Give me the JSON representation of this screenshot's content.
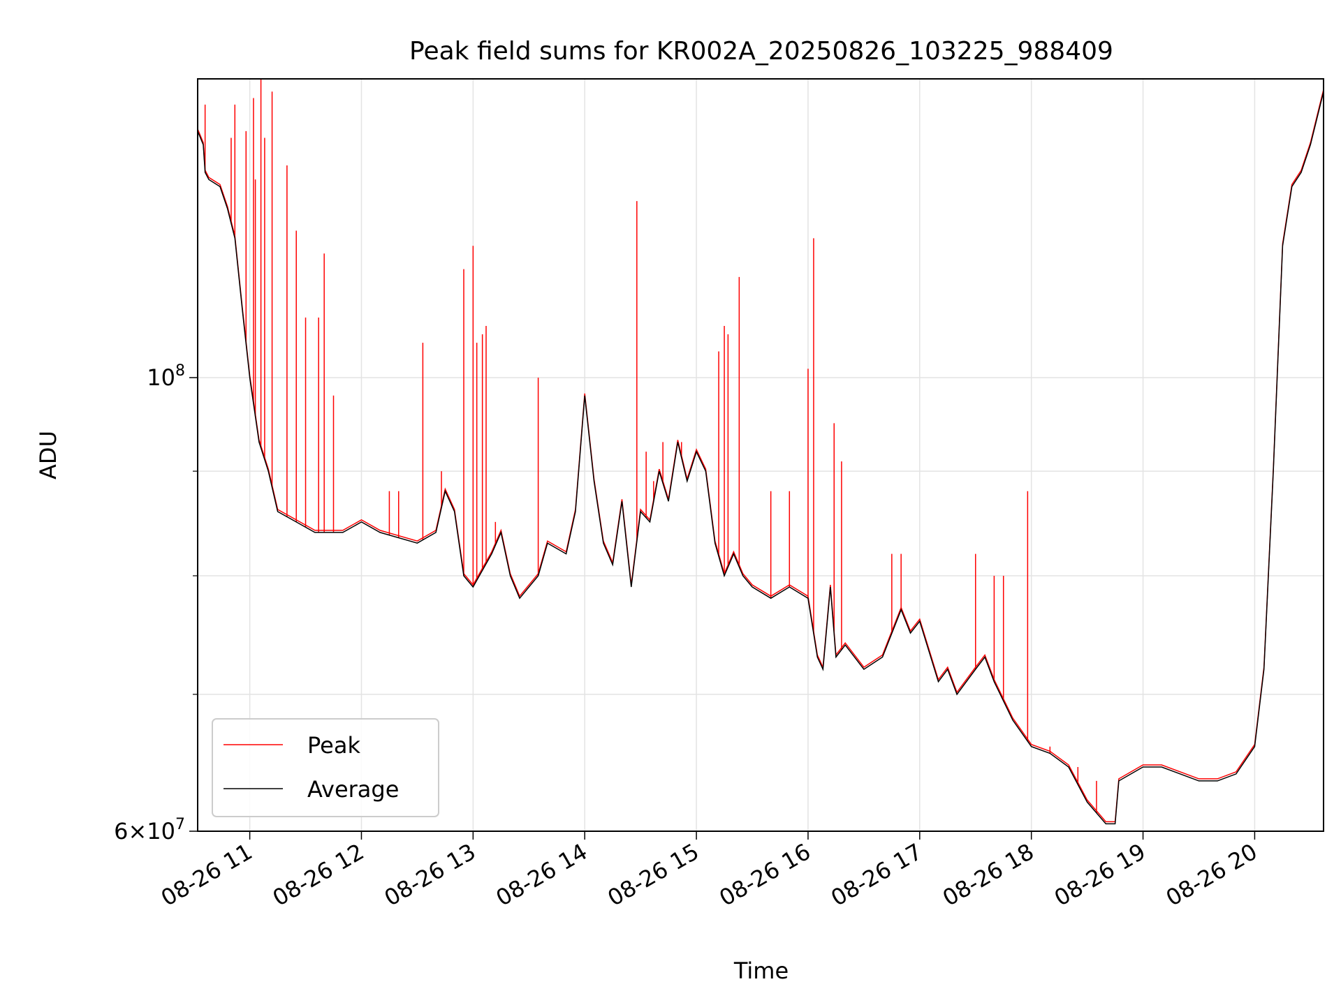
{
  "chart_data": {
    "type": "line",
    "title": "Peak field sums for KR002A_20250826_103225_988409",
    "xlabel": "Time",
    "ylabel": "ADU",
    "yscale": "log",
    "grid": true,
    "legend_position": "lower-left",
    "xlim": [
      "2025-08-26 10:32",
      "2025-08-26 20:37"
    ],
    "ylim": [
      60000000,
      140000000
    ],
    "xticks": [
      {
        "x": "2025-08-26 11:00",
        "label": "08-26 11"
      },
      {
        "x": "2025-08-26 12:00",
        "label": "08-26 12"
      },
      {
        "x": "2025-08-26 13:00",
        "label": "08-26 13"
      },
      {
        "x": "2025-08-26 14:00",
        "label": "08-26 14"
      },
      {
        "x": "2025-08-26 15:00",
        "label": "08-26 15"
      },
      {
        "x": "2025-08-26 16:00",
        "label": "08-26 16"
      },
      {
        "x": "2025-08-26 17:00",
        "label": "08-26 17"
      },
      {
        "x": "2025-08-26 18:00",
        "label": "08-26 18"
      },
      {
        "x": "2025-08-26 19:00",
        "label": "08-26 19"
      },
      {
        "x": "2025-08-26 20:00",
        "label": "08-26 20"
      }
    ],
    "yticks_major": [
      {
        "y": 100000000,
        "base": "10",
        "exp": "8",
        "mant": ""
      },
      {
        "y": 60000000,
        "base": "10",
        "exp": "7",
        "mant": "6"
      }
    ],
    "yticks_minor": [
      70000000,
      80000000,
      90000000
    ],
    "series": [
      {
        "name": "Average",
        "color": "#000000",
        "x": [
          "2025-08-26 10:32",
          "2025-08-26 10:35",
          "2025-08-26 10:36",
          "2025-08-26 10:38",
          "2025-08-26 10:44",
          "2025-08-26 10:48",
          "2025-08-26 10:52",
          "2025-08-26 10:56",
          "2025-08-26 11:00",
          "2025-08-26 11:05",
          "2025-08-26 11:10",
          "2025-08-26 11:15",
          "2025-08-26 11:25",
          "2025-08-26 11:35",
          "2025-08-26 11:50",
          "2025-08-26 12:00",
          "2025-08-26 12:10",
          "2025-08-26 12:30",
          "2025-08-26 12:40",
          "2025-08-26 12:45",
          "2025-08-26 12:50",
          "2025-08-26 12:55",
          "2025-08-26 13:00",
          "2025-08-26 13:10",
          "2025-08-26 13:15",
          "2025-08-26 13:20",
          "2025-08-26 13:25",
          "2025-08-26 13:35",
          "2025-08-26 13:40",
          "2025-08-26 13:50",
          "2025-08-26 13:55",
          "2025-08-26 14:00",
          "2025-08-26 14:05",
          "2025-08-26 14:10",
          "2025-08-26 14:15",
          "2025-08-26 14:20",
          "2025-08-26 14:25",
          "2025-08-26 14:30",
          "2025-08-26 14:35",
          "2025-08-26 14:40",
          "2025-08-26 14:45",
          "2025-08-26 14:50",
          "2025-08-26 14:55",
          "2025-08-26 15:00",
          "2025-08-26 15:05",
          "2025-08-26 15:10",
          "2025-08-26 15:15",
          "2025-08-26 15:20",
          "2025-08-26 15:25",
          "2025-08-26 15:30",
          "2025-08-26 15:40",
          "2025-08-26 15:50",
          "2025-08-26 16:00",
          "2025-08-26 16:05",
          "2025-08-26 16:08",
          "2025-08-26 16:12",
          "2025-08-26 16:15",
          "2025-08-26 16:20",
          "2025-08-26 16:30",
          "2025-08-26 16:40",
          "2025-08-26 16:50",
          "2025-08-26 16:55",
          "2025-08-26 17:00",
          "2025-08-26 17:10",
          "2025-08-26 17:15",
          "2025-08-26 17:20",
          "2025-08-26 17:30",
          "2025-08-26 17:35",
          "2025-08-26 17:40",
          "2025-08-26 17:50",
          "2025-08-26 18:00",
          "2025-08-26 18:10",
          "2025-08-26 18:20",
          "2025-08-26 18:30",
          "2025-08-26 18:40",
          "2025-08-26 18:45",
          "2025-08-26 18:47",
          "2025-08-26 19:00",
          "2025-08-26 19:10",
          "2025-08-26 19:20",
          "2025-08-26 19:30",
          "2025-08-26 19:40",
          "2025-08-26 19:50",
          "2025-08-26 20:00",
          "2025-08-26 20:05",
          "2025-08-26 20:10",
          "2025-08-26 20:15",
          "2025-08-26 20:20",
          "2025-08-26 20:25",
          "2025-08-26 20:30",
          "2025-08-26 20:37"
        ],
        "y": [
          132000000,
          130000000,
          126000000,
          125000000,
          124000000,
          121000000,
          117000000,
          108000000,
          100000000,
          93000000,
          90000000,
          86000000,
          85000000,
          84000000,
          84000000,
          85000000,
          84000000,
          83000000,
          84000000,
          88000000,
          86000000,
          80000000,
          79000000,
          82000000,
          84000000,
          80000000,
          78000000,
          80000000,
          83000000,
          82000000,
          86000000,
          98000000,
          89000000,
          83000000,
          81000000,
          87000000,
          79000000,
          86000000,
          85000000,
          90000000,
          87000000,
          93000000,
          89000000,
          92000000,
          90000000,
          83000000,
          80000000,
          82000000,
          80000000,
          79000000,
          78000000,
          79000000,
          78000000,
          73000000,
          72000000,
          79000000,
          73000000,
          74000000,
          72000000,
          73000000,
          77000000,
          75000000,
          76000000,
          71000000,
          72000000,
          70000000,
          72000000,
          73000000,
          71000000,
          68000000,
          66000000,
          65500000,
          64500000,
          62000000,
          60500000,
          60500000,
          63500000,
          64500000,
          64500000,
          64000000,
          63500000,
          63500000,
          64000000,
          66000000,
          72000000,
          90000000,
          116000000,
          124000000,
          126000000,
          130000000,
          138000000
        ]
      },
      {
        "name": "Peak",
        "color": "#ff0000",
        "x": [
          "2025-08-26 10:36",
          "2025-08-26 10:50",
          "2025-08-26 10:52",
          "2025-08-26 10:58",
          "2025-08-26 11:02",
          "2025-08-26 11:03",
          "2025-08-26 11:06",
          "2025-08-26 11:08",
          "2025-08-26 11:12",
          "2025-08-26 11:20",
          "2025-08-26 11:25",
          "2025-08-26 11:30",
          "2025-08-26 11:37",
          "2025-08-26 11:40",
          "2025-08-26 11:45",
          "2025-08-26 12:15",
          "2025-08-26 12:20",
          "2025-08-26 12:33",
          "2025-08-26 12:43",
          "2025-08-26 12:55",
          "2025-08-26 13:00",
          "2025-08-26 13:02",
          "2025-08-26 13:05",
          "2025-08-26 13:07",
          "2025-08-26 13:12",
          "2025-08-26 13:35",
          "2025-08-26 14:28",
          "2025-08-26 14:33",
          "2025-08-26 14:37",
          "2025-08-26 14:42",
          "2025-08-26 14:52",
          "2025-08-26 15:12",
          "2025-08-26 15:15",
          "2025-08-26 15:17",
          "2025-08-26 15:23",
          "2025-08-26 15:40",
          "2025-08-26 15:50",
          "2025-08-26 16:00",
          "2025-08-26 16:03",
          "2025-08-26 16:14",
          "2025-08-26 16:18",
          "2025-08-26 16:45",
          "2025-08-26 16:50",
          "2025-08-26 17:30",
          "2025-08-26 17:40",
          "2025-08-26 17:45",
          "2025-08-26 17:58",
          "2025-08-26 18:10",
          "2025-08-26 18:25",
          "2025-08-26 18:35"
        ],
        "y": [
          136000000,
          131000000,
          136000000,
          132000000,
          137000000,
          125000000,
          140000000,
          131000000,
          138000000,
          127000000,
          118000000,
          107000000,
          107000000,
          115000000,
          98000000,
          88000000,
          88000000,
          104000000,
          90000000,
          113000000,
          116000000,
          104000000,
          105000000,
          106000000,
          85000000,
          100000000,
          122000000,
          92000000,
          89000000,
          93000000,
          93000000,
          103000000,
          106000000,
          105000000,
          112000000,
          88000000,
          88000000,
          101000000,
          117000000,
          95000000,
          91000000,
          82000000,
          82000000,
          82000000,
          80000000,
          80000000,
          88000000,
          66000000,
          64500000,
          63500000
        ]
      }
    ]
  }
}
